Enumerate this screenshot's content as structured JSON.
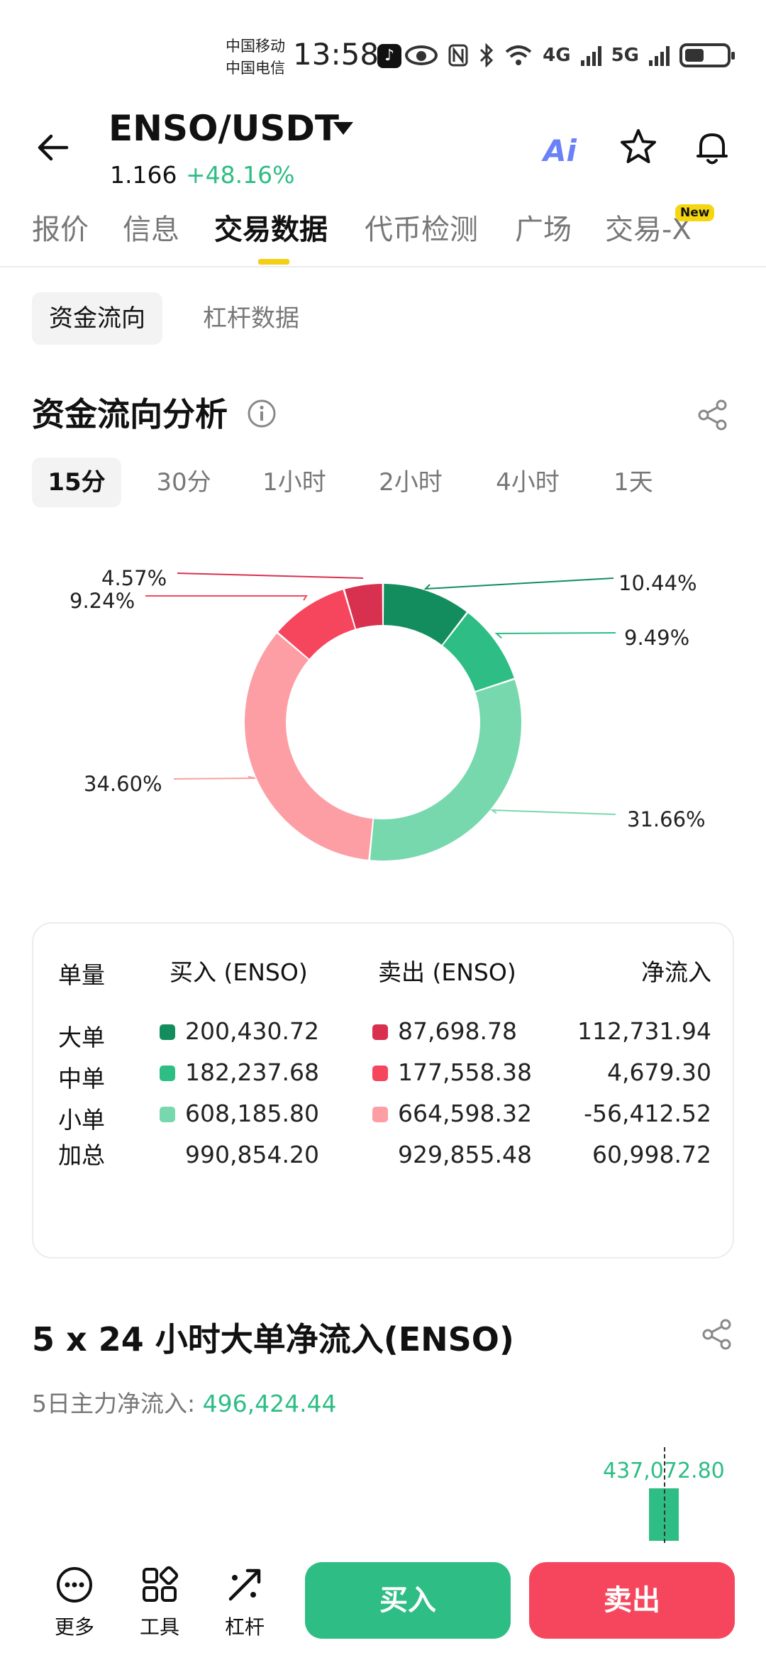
{
  "status_bar": {
    "carrier_1": "中国移动",
    "carrier_2": "中国电信",
    "time": "13:58",
    "net_4g": "4G",
    "net_5g": "5G"
  },
  "header": {
    "pair": "ENSO/USDT",
    "price": "1.166",
    "change": "+48.16%",
    "ai_label": "Ai"
  },
  "tabs": [
    {
      "label": "报价"
    },
    {
      "label": "信息"
    },
    {
      "label": "交易数据"
    },
    {
      "label": "代币检测"
    },
    {
      "label": "广场"
    },
    {
      "label": "交易-X"
    }
  ],
  "new_badge": "New",
  "sub_tabs": [
    {
      "label": "资金流向"
    },
    {
      "label": "杠杆数据"
    }
  ],
  "fund_flow": {
    "title": "资金流向分析",
    "periods": [
      "15分",
      "30分",
      "1小时",
      "2小时",
      "4小时",
      "1天"
    ],
    "active_period": "15分"
  },
  "chart_data": {
    "type": "pie",
    "variant": "donut",
    "title": "",
    "slices": [
      {
        "label": "大单买入",
        "value": 10.44,
        "display": "10.44%",
        "color": "#138d5e"
      },
      {
        "label": "中单买入",
        "value": 9.49,
        "display": "9.49%",
        "color": "#2ebd85"
      },
      {
        "label": "小单买入",
        "value": 31.66,
        "display": "31.66%",
        "color": "#77d8ae"
      },
      {
        "label": "小单卖出",
        "value": 34.6,
        "display": "34.60%",
        "color": "#fc9ea4"
      },
      {
        "label": "中单卖出",
        "value": 9.24,
        "display": "9.24%",
        "color": "#f6465d"
      },
      {
        "label": "大单卖出",
        "value": 4.57,
        "display": "4.57%",
        "color": "#d7314f"
      }
    ]
  },
  "flow_table": {
    "headers": {
      "size": "单量",
      "buy": "买入 (ENSO)",
      "sell": "卖出 (ENSO)",
      "net": "净流入"
    },
    "rows": [
      {
        "label": "大单",
        "buy": "200,430.72",
        "sell": "87,698.78",
        "net": "112,731.94",
        "buy_color": "#138d5e",
        "sell_color": "#d7314f"
      },
      {
        "label": "中单",
        "buy": "182,237.68",
        "sell": "177,558.38",
        "net": "4,679.30",
        "buy_color": "#2ebd85",
        "sell_color": "#f6465d"
      },
      {
        "label": "小单",
        "buy": "608,185.80",
        "sell": "664,598.32",
        "net": "-56,412.52",
        "buy_color": "#77d8ae",
        "sell_color": "#fc9ea4"
      }
    ],
    "total": {
      "label": "加总",
      "buy": "990,854.20",
      "sell": "929,855.48",
      "net": "60,998.72"
    }
  },
  "big_order": {
    "title": "5 x 24 小时大单净流入(ENSO)",
    "five_day_label": "5日主力净流入: ",
    "five_day_value": "496,424.44",
    "bar_value_label": "437,072.80"
  },
  "bottom_bar": {
    "more": "更多",
    "tools": "工具",
    "leverage": "杠杆",
    "buy": "买入",
    "sell": "卖出"
  }
}
